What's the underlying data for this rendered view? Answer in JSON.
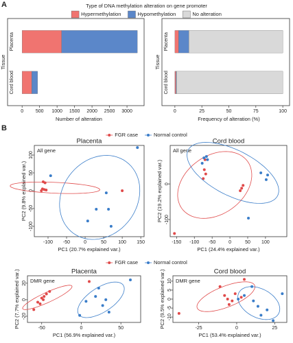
{
  "panel_labels": [
    "A",
    "B"
  ],
  "chart_data": [
    {
      "type": "bar",
      "orientation": "horizontal",
      "stacked": true,
      "legend_title": "Type of DNA methylation alteration on gene promoter",
      "xlabel": "Number of alteration",
      "ylabel": "Tissue",
      "categories": [
        "Placenta",
        "Cord blood"
      ],
      "series": [
        {
          "name": "Hypermethylation",
          "color": "#f07470",
          "values": [
            1130,
            278
          ]
        },
        {
          "name": "Hypomethylation",
          "color": "#5b87c9",
          "values": [
            2166,
            166
          ]
        },
        {
          "name": "No alteration",
          "color": "#d9d9d9",
          "values": [
            0,
            0
          ]
        }
      ],
      "xlim": [
        -200,
        3450
      ],
      "xticks": [
        0,
        500,
        1000,
        1500,
        2000,
        2500,
        3000
      ]
    },
    {
      "type": "bar",
      "orientation": "horizontal",
      "stacked": true,
      "xlabel": "Frequency of alteration (%)",
      "ylabel": "Tissue",
      "categories": [
        "Placenta",
        "Cord blood"
      ],
      "series": [
        {
          "color": "#f07470",
          "values": [
            3.5,
            1
          ]
        },
        {
          "color": "#5b87c9",
          "values": [
            9.5,
            0.5
          ]
        },
        {
          "color": "#d9d9d9",
          "values": [
            87,
            98.5
          ]
        }
      ],
      "xlim": [
        -5,
        105
      ],
      "xticks": [
        0,
        25,
        50,
        75,
        100
      ]
    },
    {
      "type": "scatter",
      "title": "Placenta",
      "annotation": "All gene",
      "xlabel": "PC1 (20.7% explained var.)",
      "ylabel": "PC2 (9.8% explained var.)",
      "series": [
        {
          "name": "FGR case",
          "color": "#e04a4a",
          "x": [
            -113,
            -108,
            -115,
            -110,
            -105,
            -118,
            100
          ],
          "y": [
            25,
            22,
            5,
            3,
            2,
            0,
            0
          ]
        },
        {
          "name": "Normal control",
          "color": "#3a7dc9",
          "x": [
            -93,
            57,
            63,
            30,
            70,
            7,
            141
          ],
          "y": [
            42,
            -6,
            -52,
            -52,
            -100,
            -85,
            121
          ]
        }
      ],
      "xlim": [
        -137,
        159
      ],
      "ylim": [
        -129,
        127
      ],
      "xticks": [
        -100,
        -50,
        0,
        50,
        100,
        150
      ],
      "yticks": [
        -100,
        -50,
        0,
        50,
        100
      ]
    },
    {
      "type": "scatter",
      "title": "Cord blood",
      "annotation": "All gene",
      "xlabel": "PC1 (24.4% explained var.)",
      "ylabel": "PC2 (19.2% explained var.)",
      "series": [
        {
          "color": "#e04a4a",
          "x": [
            -156,
            -75,
            -72,
            -68,
            33,
            29,
            37,
            -70
          ],
          "y": [
            -139,
            15,
            40,
            28,
            -12,
            -19,
            -4,
            68
          ]
        },
        {
          "color": "#3a7dc9",
          "x": [
            -73,
            -66,
            -63,
            -78,
            106,
            102,
            87,
            52
          ],
          "y": [
            73,
            77,
            68,
            58,
            25,
            12,
            31,
            -96
          ]
        }
      ],
      "xlim": [
        -168,
        160
      ],
      "ylim": [
        -148,
        108
      ],
      "xticks": [
        -150,
        -100,
        -50,
        0,
        50,
        100
      ],
      "yticks": [
        -100,
        0
      ]
    },
    {
      "type": "scatter",
      "title": "Placenta",
      "annotation": "DMR gene",
      "xlabel": "PC1 (56.9% explained var.)",
      "ylabel": "PC2 (7.7% explained var.)",
      "series": [
        {
          "name": "FGR case",
          "color": "#e04a4a",
          "x": [
            -60,
            -55,
            -50,
            -47,
            -44,
            -40,
            -52,
            -48,
            10
          ],
          "y": [
            -12,
            -3,
            2,
            4,
            7,
            10,
            -5,
            0,
            22
          ]
        },
        {
          "name": "Normal control",
          "color": "#3a7dc9",
          "x": [
            6,
            18,
            22,
            27,
            31,
            35,
            -2,
            62
          ],
          "y": [
            -2,
            4,
            14,
            -7,
            0,
            -15,
            -19,
            24
          ]
        }
      ],
      "xlim": [
        -68,
        75
      ],
      "ylim": [
        -27.5,
        29
      ],
      "xticks": [
        -50,
        0,
        50
      ],
      "yticks": [
        -20,
        0,
        20
      ]
    },
    {
      "type": "scatter",
      "title": "Cord blood",
      "annotation": "DMR gene",
      "xlabel": "PC1 (53.4% explained var.)",
      "ylabel": "PC2 (9.5% explained var.)",
      "series": [
        {
          "color": "#e04a4a",
          "x": [
            -38,
            -11,
            -8,
            -6,
            -3,
            -1,
            3,
            5,
            -5
          ],
          "y": [
            -8,
            7,
            2,
            0,
            -1,
            3,
            1,
            11,
            -3
          ]
        },
        {
          "color": "#3a7dc9",
          "x": [
            1,
            5,
            10,
            11,
            14,
            16,
            24,
            30,
            20
          ],
          "y": [
            0,
            2,
            7,
            -1,
            -4,
            -9,
            -12,
            3,
            -6
          ]
        }
      ],
      "xlim": [
        -42,
        33
      ],
      "ylim": [
        -13,
        13
      ],
      "xticks": [
        -25,
        0,
        25
      ],
      "yticks": [
        -10,
        -5,
        0,
        5,
        10
      ]
    }
  ]
}
